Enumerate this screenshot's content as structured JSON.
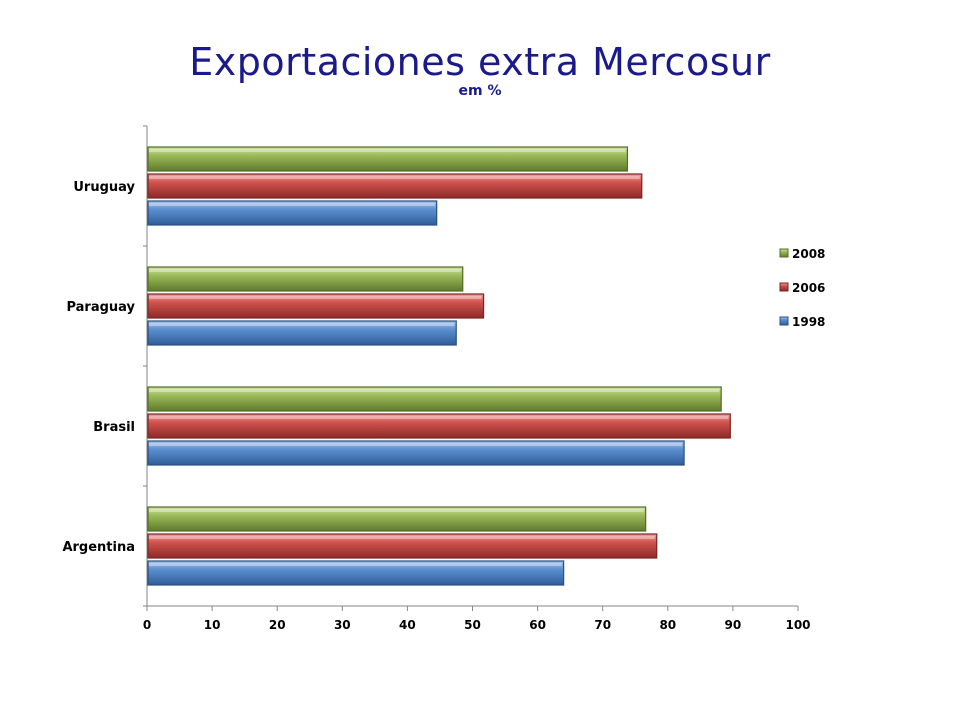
{
  "chart_data": {
    "type": "bar",
    "orientation": "horizontal",
    "title": "Exportaciones extra Mercosur",
    "subtitle": "em %",
    "categories": [
      "Argentina",
      "Brasil",
      "Paraguay",
      "Uruguay"
    ],
    "series": [
      {
        "name": "1998",
        "values": [
          64,
          82.5,
          47.5,
          44.5
        ],
        "color": "#4f81bd"
      },
      {
        "name": "2006",
        "values": [
          78.3,
          89.6,
          51.7,
          76
        ],
        "color": "#c0504d"
      },
      {
        "name": "2008",
        "values": [
          76.6,
          88.2,
          48.5,
          73.8
        ],
        "color": "#9bbb59"
      }
    ],
    "xlim": [
      0,
      100
    ],
    "xticks": [
      "0",
      "10",
      "20",
      "30",
      "40",
      "50",
      "60",
      "70",
      "80",
      "90",
      "100"
    ],
    "legend_position": "right",
    "legend_order": [
      "2008",
      "2006",
      "1998"
    ],
    "grid": false
  }
}
